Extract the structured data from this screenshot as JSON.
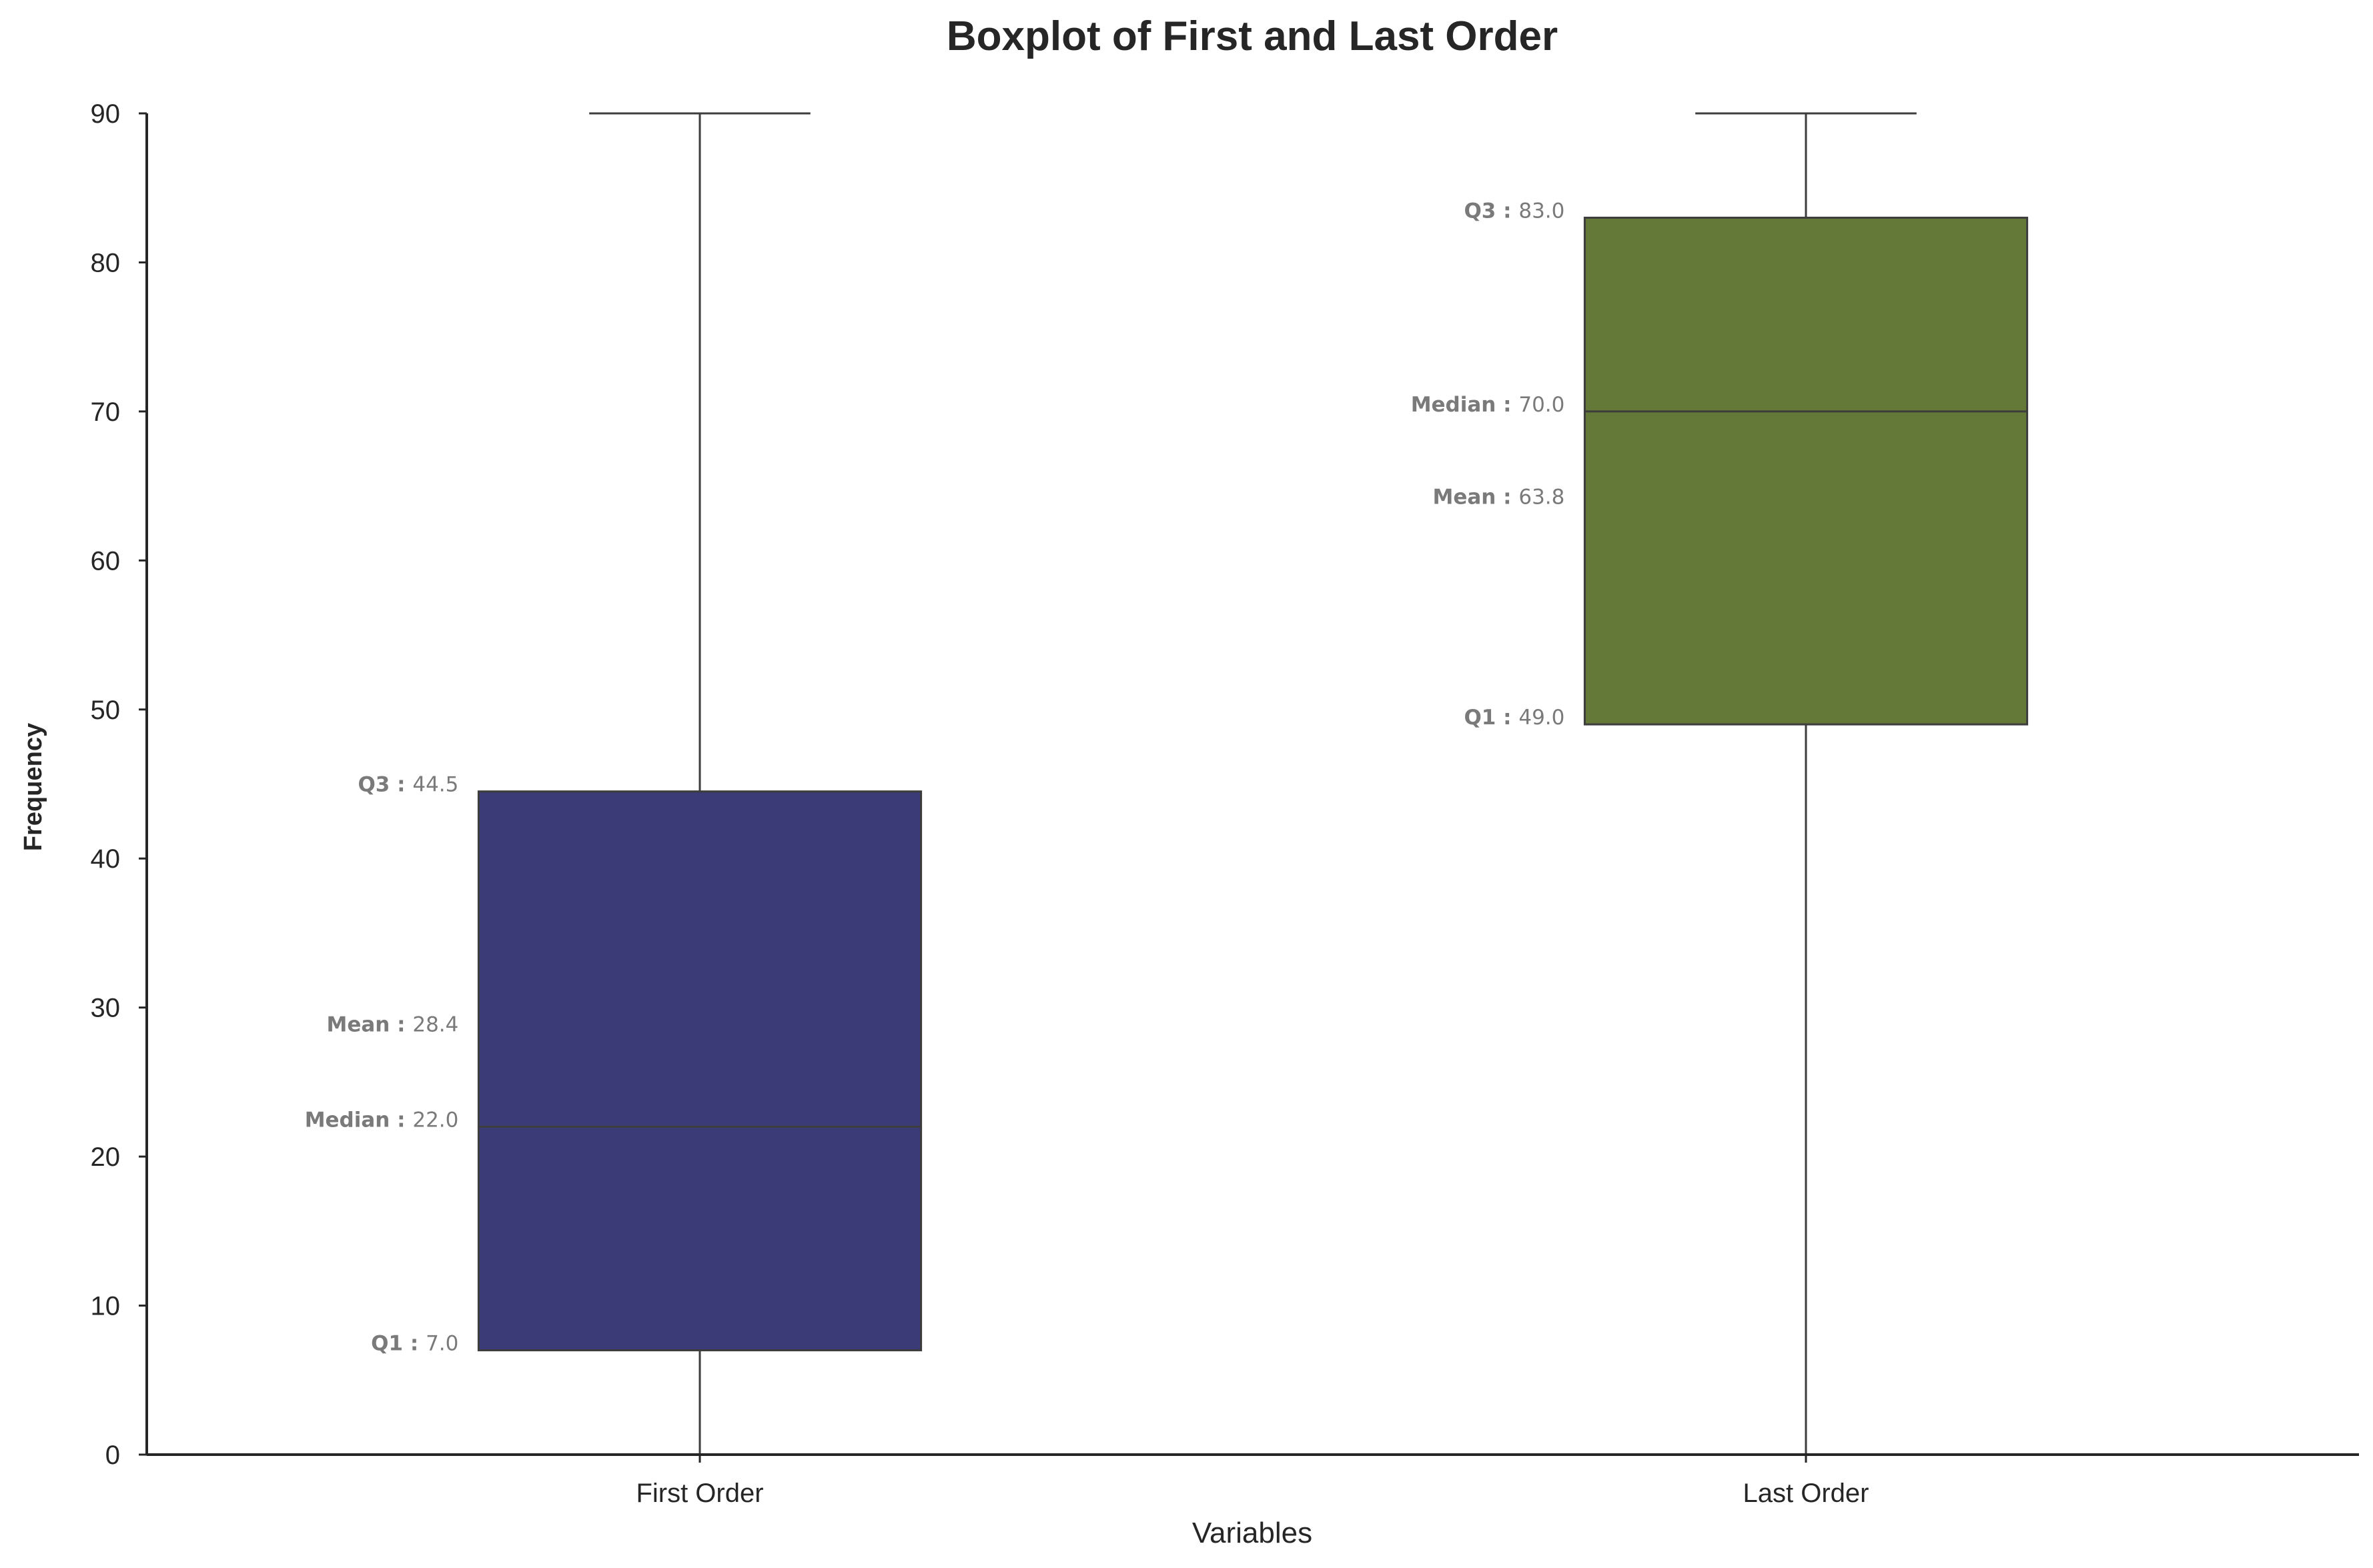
{
  "chart_data": {
    "type": "boxplot",
    "title": "Boxplot of First and Last Order",
    "xlabel": "Variables",
    "ylabel": "Frequency",
    "ylim": [
      0,
      90
    ],
    "yticks": [
      0,
      10,
      20,
      30,
      40,
      50,
      60,
      70,
      80,
      90
    ],
    "grid": false,
    "legend": "none",
    "categories": [
      "First Order",
      "Last Order"
    ],
    "boxes": [
      {
        "name": "First Order",
        "color": "#3a3b77",
        "whisker_low": 0,
        "q1": 7.0,
        "median": 22.0,
        "mean": 28.4,
        "q3": 44.5,
        "whisker_high": 90,
        "labels": {
          "q1": "7.0",
          "median": "22.0",
          "mean": "28.4",
          "q3": "44.5"
        }
      },
      {
        "name": "Last Order",
        "color": "#647838",
        "whisker_low": 0,
        "q1": 49.0,
        "median": 70.0,
        "mean": 63.8,
        "q3": 83.0,
        "whisker_high": 90,
        "labels": {
          "q1": "49.0",
          "median": "70.0",
          "mean": "63.8",
          "q3": "83.0"
        }
      }
    ],
    "annotation_keys": {
      "q1": "Q1",
      "median": "Median",
      "mean": "Mean",
      "q3": "Q3"
    }
  }
}
